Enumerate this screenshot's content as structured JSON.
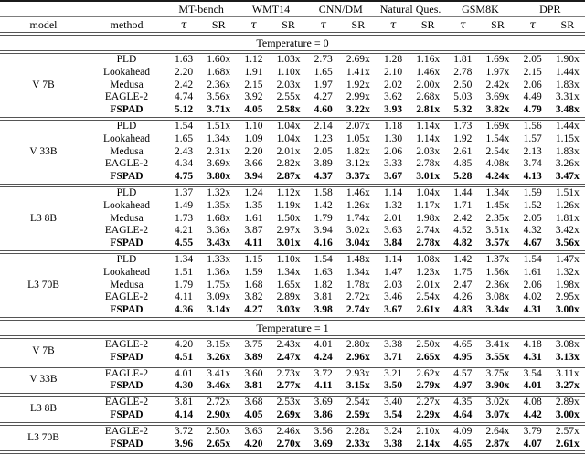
{
  "table": {
    "columns": {
      "model": "model",
      "method": "method",
      "tau": "τ",
      "sr": "SR"
    },
    "groups": [
      "MT-bench",
      "WMT14",
      "CNN/DM",
      "Natural Ques.",
      "GSM8K",
      "DPR"
    ],
    "sections": [
      {
        "title": "Temperature = 0",
        "blocks": [
          {
            "model": "V 7B",
            "rows": [
              {
                "method": "PLD",
                "bold": false,
                "values": [
                  "1.63",
                  "1.60x",
                  "1.12",
                  "1.03x",
                  "2.73",
                  "2.69x",
                  "1.28",
                  "1.16x",
                  "1.81",
                  "1.69x",
                  "2.05",
                  "1.90x"
                ]
              },
              {
                "method": "Lookahead",
                "bold": false,
                "values": [
                  "2.20",
                  "1.68x",
                  "1.91",
                  "1.10x",
                  "1.65",
                  "1.41x",
                  "2.10",
                  "1.46x",
                  "2.78",
                  "1.97x",
                  "2.15",
                  "1.44x"
                ]
              },
              {
                "method": "Medusa",
                "bold": false,
                "values": [
                  "2.42",
                  "2.36x",
                  "2.15",
                  "2.03x",
                  "1.97",
                  "1.92x",
                  "2.02",
                  "2.00x",
                  "2.50",
                  "2.42x",
                  "2.06",
                  "1.83x"
                ]
              },
              {
                "method": "EAGLE-2",
                "bold": false,
                "values": [
                  "4.74",
                  "3.56x",
                  "3.92",
                  "2.55x",
                  "4.27",
                  "2.99x",
                  "3.62",
                  "2.68x",
                  "5.03",
                  "3.69x",
                  "4.49",
                  "3.31x"
                ]
              },
              {
                "method": "FSPAD",
                "bold": true,
                "values": [
                  "5.12",
                  "3.71x",
                  "4.05",
                  "2.58x",
                  "4.60",
                  "3.22x",
                  "3.93",
                  "2.81x",
                  "5.32",
                  "3.82x",
                  "4.79",
                  "3.48x"
                ]
              }
            ]
          },
          {
            "model": "V 33B",
            "rows": [
              {
                "method": "PLD",
                "bold": false,
                "values": [
                  "1.54",
                  "1.51x",
                  "1.10",
                  "1.04x",
                  "2.14",
                  "2.07x",
                  "1.18",
                  "1.14x",
                  "1.73",
                  "1.69x",
                  "1.56",
                  "1.44x"
                ]
              },
              {
                "method": "Lookahead",
                "bold": false,
                "values": [
                  "1.65",
                  "1.34x",
                  "1.09",
                  "1.04x",
                  "1.23",
                  "1.05x",
                  "1.30",
                  "1.14x",
                  "1.92",
                  "1.54x",
                  "1.57",
                  "1.15x"
                ]
              },
              {
                "method": "Medusa",
                "bold": false,
                "values": [
                  "2.43",
                  "2.31x",
                  "2.20",
                  "2.01x",
                  "2.05",
                  "1.82x",
                  "2.06",
                  "2.03x",
                  "2.61",
                  "2.54x",
                  "2.13",
                  "1.83x"
                ]
              },
              {
                "method": "EAGLE-2",
                "bold": false,
                "values": [
                  "4.34",
                  "3.69x",
                  "3.66",
                  "2.82x",
                  "3.89",
                  "3.12x",
                  "3.33",
                  "2.78x",
                  "4.85",
                  "4.08x",
                  "3.74",
                  "3.26x"
                ]
              },
              {
                "method": "FSPAD",
                "bold": true,
                "values": [
                  "4.75",
                  "3.80x",
                  "3.94",
                  "2.87x",
                  "4.37",
                  "3.37x",
                  "3.67",
                  "3.01x",
                  "5.28",
                  "4.24x",
                  "4.13",
                  "3.47x"
                ]
              }
            ]
          },
          {
            "model": "L3 8B",
            "rows": [
              {
                "method": "PLD",
                "bold": false,
                "values": [
                  "1.37",
                  "1.32x",
                  "1.24",
                  "1.12x",
                  "1.58",
                  "1.46x",
                  "1.14",
                  "1.04x",
                  "1.44",
                  "1.34x",
                  "1.59",
                  "1.51x"
                ]
              },
              {
                "method": "Lookahead",
                "bold": false,
                "values": [
                  "1.49",
                  "1.35x",
                  "1.35",
                  "1.19x",
                  "1.42",
                  "1.26x",
                  "1.32",
                  "1.17x",
                  "1.71",
                  "1.45x",
                  "1.52",
                  "1.26x"
                ]
              },
              {
                "method": "Medusa",
                "bold": false,
                "values": [
                  "1.73",
                  "1.68x",
                  "1.61",
                  "1.50x",
                  "1.79",
                  "1.74x",
                  "2.01",
                  "1.98x",
                  "2.42",
                  "2.35x",
                  "2.05",
                  "1.81x"
                ]
              },
              {
                "method": "EAGLE-2",
                "bold": false,
                "values": [
                  "4.21",
                  "3.36x",
                  "3.87",
                  "2.97x",
                  "3.94",
                  "3.02x",
                  "3.63",
                  "2.74x",
                  "4.52",
                  "3.51x",
                  "4.32",
                  "3.42x"
                ]
              },
              {
                "method": "FSPAD",
                "bold": true,
                "values": [
                  "4.55",
                  "3.43x",
                  "4.11",
                  "3.01x",
                  "4.16",
                  "3.04x",
                  "3.84",
                  "2.78x",
                  "4.82",
                  "3.57x",
                  "4.67",
                  "3.56x"
                ]
              }
            ]
          },
          {
            "model": "L3 70B",
            "rows": [
              {
                "method": "PLD",
                "bold": false,
                "values": [
                  "1.34",
                  "1.33x",
                  "1.15",
                  "1.10x",
                  "1.54",
                  "1.48x",
                  "1.14",
                  "1.08x",
                  "1.42",
                  "1.37x",
                  "1.54",
                  "1.47x"
                ]
              },
              {
                "method": "Lookahead",
                "bold": false,
                "values": [
                  "1.51",
                  "1.36x",
                  "1.59",
                  "1.34x",
                  "1.63",
                  "1.34x",
                  "1.47",
                  "1.23x",
                  "1.75",
                  "1.56x",
                  "1.61",
                  "1.32x"
                ]
              },
              {
                "method": "Medusa",
                "bold": false,
                "values": [
                  "1.79",
                  "1.75x",
                  "1.68",
                  "1.65x",
                  "1.82",
                  "1.78x",
                  "2.03",
                  "2.01x",
                  "2.47",
                  "2.36x",
                  "2.06",
                  "1.98x"
                ]
              },
              {
                "method": "EAGLE-2",
                "bold": false,
                "values": [
                  "4.11",
                  "3.09x",
                  "3.82",
                  "2.89x",
                  "3.81",
                  "2.72x",
                  "3.46",
                  "2.54x",
                  "4.26",
                  "3.08x",
                  "4.02",
                  "2.95x"
                ]
              },
              {
                "method": "FSPAD",
                "bold": true,
                "values": [
                  "4.36",
                  "3.14x",
                  "4.27",
                  "3.03x",
                  "3.98",
                  "2.74x",
                  "3.67",
                  "2.61x",
                  "4.83",
                  "3.34x",
                  "4.31",
                  "3.00x"
                ]
              }
            ]
          }
        ]
      },
      {
        "title": "Temperature = 1",
        "blocks": [
          {
            "model": "V 7B",
            "rows": [
              {
                "method": "EAGLE-2",
                "bold": false,
                "values": [
                  "4.20",
                  "3.15x",
                  "3.75",
                  "2.43x",
                  "4.01",
                  "2.80x",
                  "3.38",
                  "2.50x",
                  "4.65",
                  "3.41x",
                  "4.18",
                  "3.08x"
                ]
              },
              {
                "method": "FSPAD",
                "bold": true,
                "values": [
                  "4.51",
                  "3.26x",
                  "3.89",
                  "2.47x",
                  "4.24",
                  "2.96x",
                  "3.71",
                  "2.65x",
                  "4.95",
                  "3.55x",
                  "4.31",
                  "3.13x"
                ]
              }
            ]
          },
          {
            "model": "V 33B",
            "rows": [
              {
                "method": "EAGLE-2",
                "bold": false,
                "values": [
                  "4.01",
                  "3.41x",
                  "3.60",
                  "2.73x",
                  "3.72",
                  "2.93x",
                  "3.21",
                  "2.62x",
                  "4.57",
                  "3.75x",
                  "3.54",
                  "3.11x"
                ]
              },
              {
                "method": "FSPAD",
                "bold": true,
                "values": [
                  "4.30",
                  "3.46x",
                  "3.81",
                  "2.77x",
                  "4.11",
                  "3.15x",
                  "3.50",
                  "2.79x",
                  "4.97",
                  "3.90x",
                  "4.01",
                  "3.27x"
                ]
              }
            ]
          },
          {
            "model": "L3 8B",
            "rows": [
              {
                "method": "EAGLE-2",
                "bold": false,
                "values": [
                  "3.81",
                  "2.72x",
                  "3.68",
                  "2.53x",
                  "3.69",
                  "2.54x",
                  "3.40",
                  "2.27x",
                  "4.35",
                  "3.02x",
                  "4.08",
                  "2.89x"
                ]
              },
              {
                "method": "FSPAD",
                "bold": true,
                "values": [
                  "4.14",
                  "2.90x",
                  "4.05",
                  "2.69x",
                  "3.86",
                  "2.59x",
                  "3.54",
                  "2.29x",
                  "4.64",
                  "3.07x",
                  "4.42",
                  "3.00x"
                ]
              }
            ]
          },
          {
            "model": "L3 70B",
            "rows": [
              {
                "method": "EAGLE-2",
                "bold": false,
                "values": [
                  "3.72",
                  "2.50x",
                  "3.63",
                  "2.46x",
                  "3.56",
                  "2.28x",
                  "3.24",
                  "2.10x",
                  "4.09",
                  "2.64x",
                  "3.79",
                  "2.57x"
                ]
              },
              {
                "method": "FSPAD",
                "bold": true,
                "values": [
                  "3.96",
                  "2.65x",
                  "4.20",
                  "2.70x",
                  "3.69",
                  "2.33x",
                  "3.38",
                  "2.14x",
                  "4.65",
                  "2.87x",
                  "4.07",
                  "2.61x"
                ]
              }
            ]
          }
        ]
      }
    ]
  }
}
